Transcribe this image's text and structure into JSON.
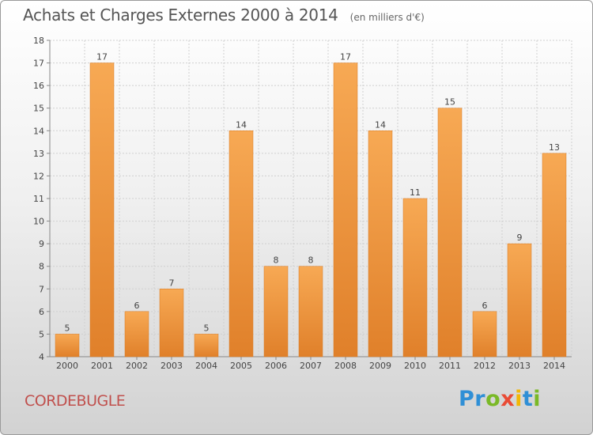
{
  "header": {
    "title": "Achats et Charges Externes 2000 à 2014",
    "unit": "(en milliers d'€)"
  },
  "footer": {
    "commune": "CORDEBUGLE",
    "logo": {
      "letters": [
        "P",
        "r",
        "o",
        "x",
        "i",
        "t",
        "i"
      ],
      "colors": [
        "#2f8fd6",
        "#2f8fd6",
        "#7ab927",
        "#e94b35",
        "#f2b705",
        "#2f8fd6",
        "#7ab927"
      ]
    }
  },
  "colors": {
    "bar_light": "#f7a954",
    "bar_dark": "#e0802a",
    "grid": "#d0d0d0",
    "axis_text": "#444444"
  },
  "chart_data": {
    "type": "bar",
    "categories": [
      "2000",
      "2001",
      "2002",
      "2003",
      "2004",
      "2005",
      "2006",
      "2007",
      "2008",
      "2009",
      "2010",
      "2011",
      "2012",
      "2013",
      "2014"
    ],
    "values": [
      5,
      17,
      6,
      7,
      5,
      14,
      8,
      8,
      17,
      14,
      11,
      15,
      6,
      9,
      13
    ],
    "ylim": [
      4,
      18
    ],
    "yticks": [
      4,
      5,
      6,
      7,
      8,
      9,
      10,
      11,
      12,
      13,
      14,
      15,
      16,
      17,
      18
    ],
    "grid": true,
    "data_labels": true
  }
}
